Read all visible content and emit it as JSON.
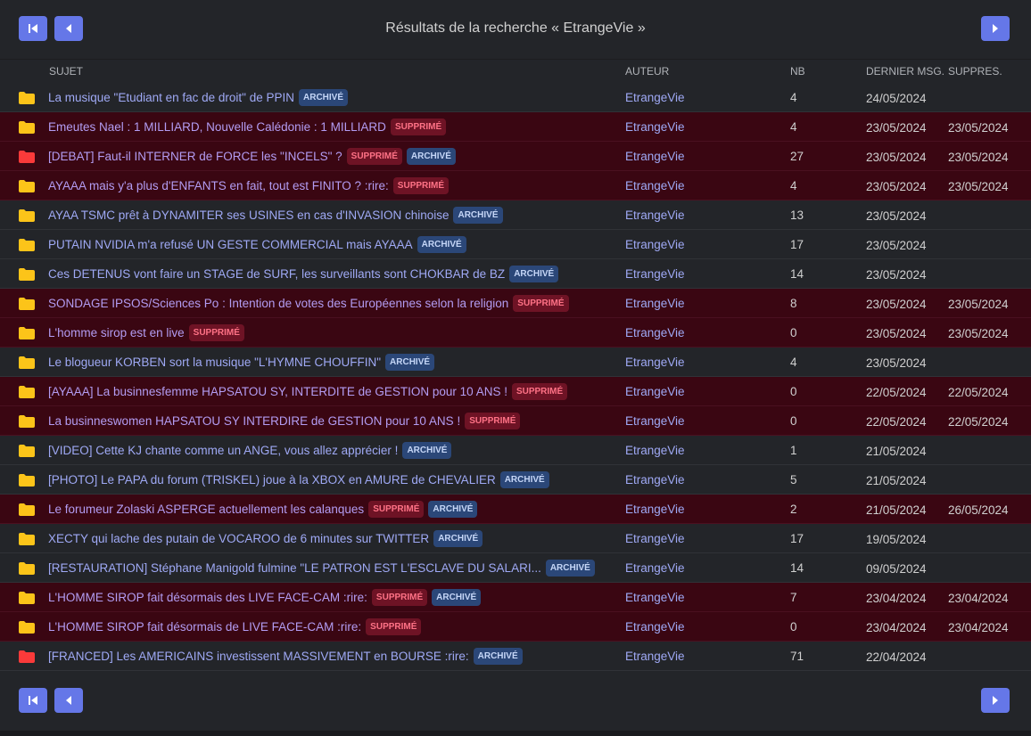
{
  "page": {
    "title": "Résultats de la recherche « EtrangeVie »"
  },
  "columns": {
    "subject": "SUJET",
    "author": "AUTEUR",
    "nb": "NB",
    "last": "DERNIER MSG.",
    "deleted": "SUPPRES."
  },
  "colors": {
    "folder_normal": "#fcc419",
    "folder_hot": "#fa3a3a",
    "nav_button": "#6577e8"
  },
  "icons": {
    "first": "first-page-icon",
    "prev": "previous-page-icon",
    "next": "next-page-icon",
    "folder": "folder-icon"
  },
  "rows": [
    {
      "subject": "La musique \"Etudiant en fac de droit\" de PPIN",
      "author": "EtrangeVie",
      "nb": "4",
      "last": "24/05/2024",
      "deleted_date": "",
      "badges": [
        "archive"
      ],
      "deleted": false,
      "hot": false
    },
    {
      "subject": "Emeutes Nael : 1 MILLIARD, Nouvelle Calédonie : 1 MILLIARD",
      "author": "EtrangeVie",
      "nb": "4",
      "last": "23/05/2024",
      "deleted_date": "23/05/2024",
      "badges": [
        "deleted"
      ],
      "deleted": true,
      "hot": false
    },
    {
      "subject": "[DEBAT] Faut-il INTERNER de FORCE les \"INCELS\" ?",
      "author": "EtrangeVie",
      "nb": "27",
      "last": "23/05/2024",
      "deleted_date": "23/05/2024",
      "badges": [
        "deleted",
        "archive"
      ],
      "deleted": true,
      "hot": true
    },
    {
      "subject": "AYAAA mais y'a plus d'ENFANTS en fait, tout est FINITO ? :rire:",
      "author": "EtrangeVie",
      "nb": "4",
      "last": "23/05/2024",
      "deleted_date": "23/05/2024",
      "badges": [
        "deleted"
      ],
      "deleted": true,
      "hot": false
    },
    {
      "subject": "AYAA TSMC prêt à DYNAMITER ses USINES en cas d'INVASION chinoise",
      "author": "EtrangeVie",
      "nb": "13",
      "last": "23/05/2024",
      "deleted_date": "",
      "badges": [
        "archive"
      ],
      "deleted": false,
      "hot": false
    },
    {
      "subject": "PUTAIN NVIDIA m'a refusé UN GESTE COMMERCIAL mais AYAAA",
      "author": "EtrangeVie",
      "nb": "17",
      "last": "23/05/2024",
      "deleted_date": "",
      "badges": [
        "archive"
      ],
      "deleted": false,
      "hot": false
    },
    {
      "subject": "Ces DETENUS vont faire un STAGE de SURF, les surveillants sont CHOKBAR de BZ",
      "author": "EtrangeVie",
      "nb": "14",
      "last": "23/05/2024",
      "deleted_date": "",
      "badges": [
        "archive"
      ],
      "deleted": false,
      "hot": false
    },
    {
      "subject": "SONDAGE IPSOS/Sciences Po : Intention de votes des Européennes selon la religion",
      "author": "EtrangeVie",
      "nb": "8",
      "last": "23/05/2024",
      "deleted_date": "23/05/2024",
      "badges": [
        "deleted"
      ],
      "deleted": true,
      "hot": false
    },
    {
      "subject": "L'homme sirop est en live",
      "author": "EtrangeVie",
      "nb": "0",
      "last": "23/05/2024",
      "deleted_date": "23/05/2024",
      "badges": [
        "deleted"
      ],
      "deleted": true,
      "hot": false
    },
    {
      "subject": "Le blogueur KORBEN sort la musique \"L'HYMNE CHOUFFIN\"",
      "author": "EtrangeVie",
      "nb": "4",
      "last": "23/05/2024",
      "deleted_date": "",
      "badges": [
        "archive"
      ],
      "deleted": false,
      "hot": false
    },
    {
      "subject": "[AYAAA] La businnesfemme HAPSATOU SY, INTERDITE de GESTION pour 10 ANS !",
      "author": "EtrangeVie",
      "nb": "0",
      "last": "22/05/2024",
      "deleted_date": "22/05/2024",
      "badges": [
        "deleted"
      ],
      "deleted": true,
      "hot": false
    },
    {
      "subject": "La businneswomen HAPSATOU SY INTERDIRE de GESTION pour 10 ANS !",
      "author": "EtrangeVie",
      "nb": "0",
      "last": "22/05/2024",
      "deleted_date": "22/05/2024",
      "badges": [
        "deleted"
      ],
      "deleted": true,
      "hot": false
    },
    {
      "subject": "[VIDEO] Cette KJ chante comme un ANGE, vous allez apprécier !",
      "author": "EtrangeVie",
      "nb": "1",
      "last": "21/05/2024",
      "deleted_date": "",
      "badges": [
        "archive"
      ],
      "deleted": false,
      "hot": false
    },
    {
      "subject": "[PHOTO] Le PAPA du forum (TRISKEL) joue à la XBOX en AMURE de CHEVALIER",
      "author": "EtrangeVie",
      "nb": "5",
      "last": "21/05/2024",
      "deleted_date": "",
      "badges": [
        "archive"
      ],
      "deleted": false,
      "hot": false
    },
    {
      "subject": "Le forumeur Zolaski ASPERGE actuellement les calanques",
      "author": "EtrangeVie",
      "nb": "2",
      "last": "21/05/2024",
      "deleted_date": "26/05/2024",
      "badges": [
        "deleted",
        "archive"
      ],
      "deleted": true,
      "hot": false
    },
    {
      "subject": "XECTY qui lache des putain de VOCAROO de 6 minutes sur TWITTER",
      "author": "EtrangeVie",
      "nb": "17",
      "last": "19/05/2024",
      "deleted_date": "",
      "badges": [
        "archive"
      ],
      "deleted": false,
      "hot": false
    },
    {
      "subject": "[RESTAURATION] Stéphane Manigold fulmine \"LE PATRON EST L'ESCLAVE DU SALARI...",
      "author": "EtrangeVie",
      "nb": "14",
      "last": "09/05/2024",
      "deleted_date": "",
      "badges": [
        "archive"
      ],
      "deleted": false,
      "hot": false
    },
    {
      "subject": "L'HOMME SIROP fait désormais des LIVE FACE-CAM :rire:",
      "author": "EtrangeVie",
      "nb": "7",
      "last": "23/04/2024",
      "deleted_date": "23/04/2024",
      "badges": [
        "deleted",
        "archive"
      ],
      "deleted": true,
      "hot": false
    },
    {
      "subject": "L'HOMME SIROP fait désormais de LIVE FACE-CAM :rire:",
      "author": "EtrangeVie",
      "nb": "0",
      "last": "23/04/2024",
      "deleted_date": "23/04/2024",
      "badges": [
        "deleted"
      ],
      "deleted": true,
      "hot": false
    },
    {
      "subject": "[FRANCED] Les AMERICAINS investissent MASSIVEMENT en BOURSE :rire:",
      "author": "EtrangeVie",
      "nb": "71",
      "last": "22/04/2024",
      "deleted_date": "",
      "badges": [
        "archive"
      ],
      "deleted": false,
      "hot": true
    }
  ],
  "badge_labels": {
    "archive": "ARCHIVÉ",
    "deleted": "SUPPRIMÉ"
  }
}
